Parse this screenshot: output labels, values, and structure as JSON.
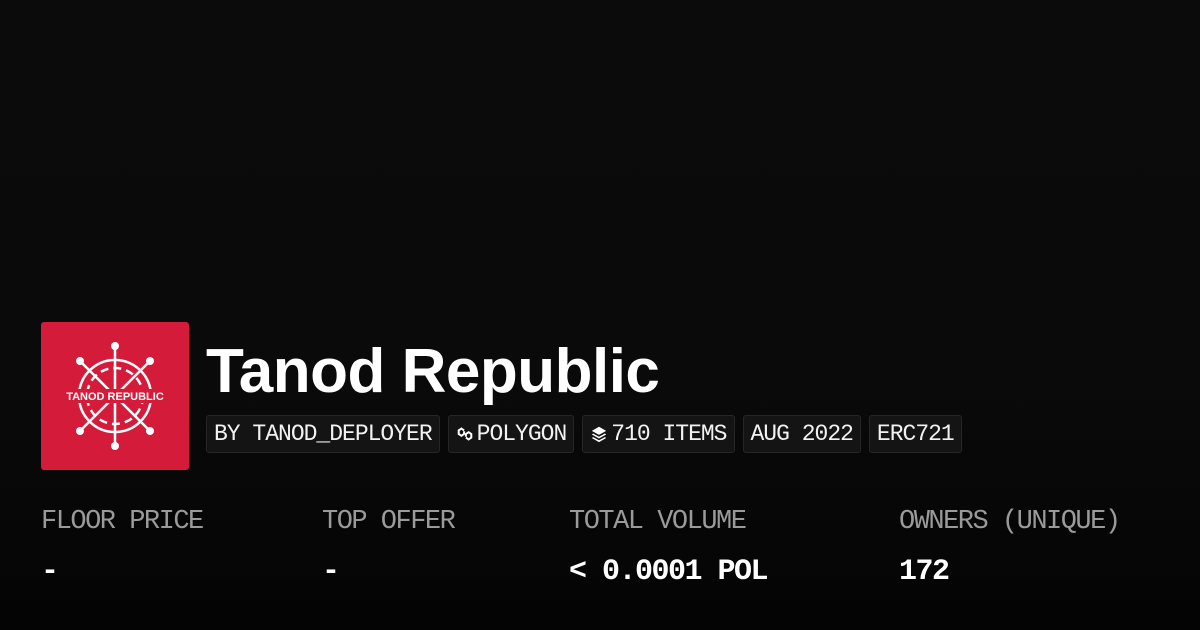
{
  "collection": {
    "name": "Tanod Republic",
    "logo_text": "TANOD REPUBLIC",
    "logo_color": "#d51b3a"
  },
  "pills": [
    {
      "label": "BY TANOD_DEPLOYER",
      "icon": ""
    },
    {
      "label": "POLYGON",
      "icon": "chain-link-icon"
    },
    {
      "label": "710 ITEMS",
      "icon": "layers-icon"
    },
    {
      "label": "AUG 2022",
      "icon": ""
    },
    {
      "label": "ERC721",
      "icon": ""
    }
  ],
  "stats": [
    {
      "label": "FLOOR PRICE",
      "value": "-"
    },
    {
      "label": "TOP OFFER",
      "value": "-"
    },
    {
      "label": "TOTAL VOLUME",
      "value": "< 0.0001 POL"
    },
    {
      "label": "OWNERS (UNIQUE)",
      "value": "172"
    }
  ]
}
